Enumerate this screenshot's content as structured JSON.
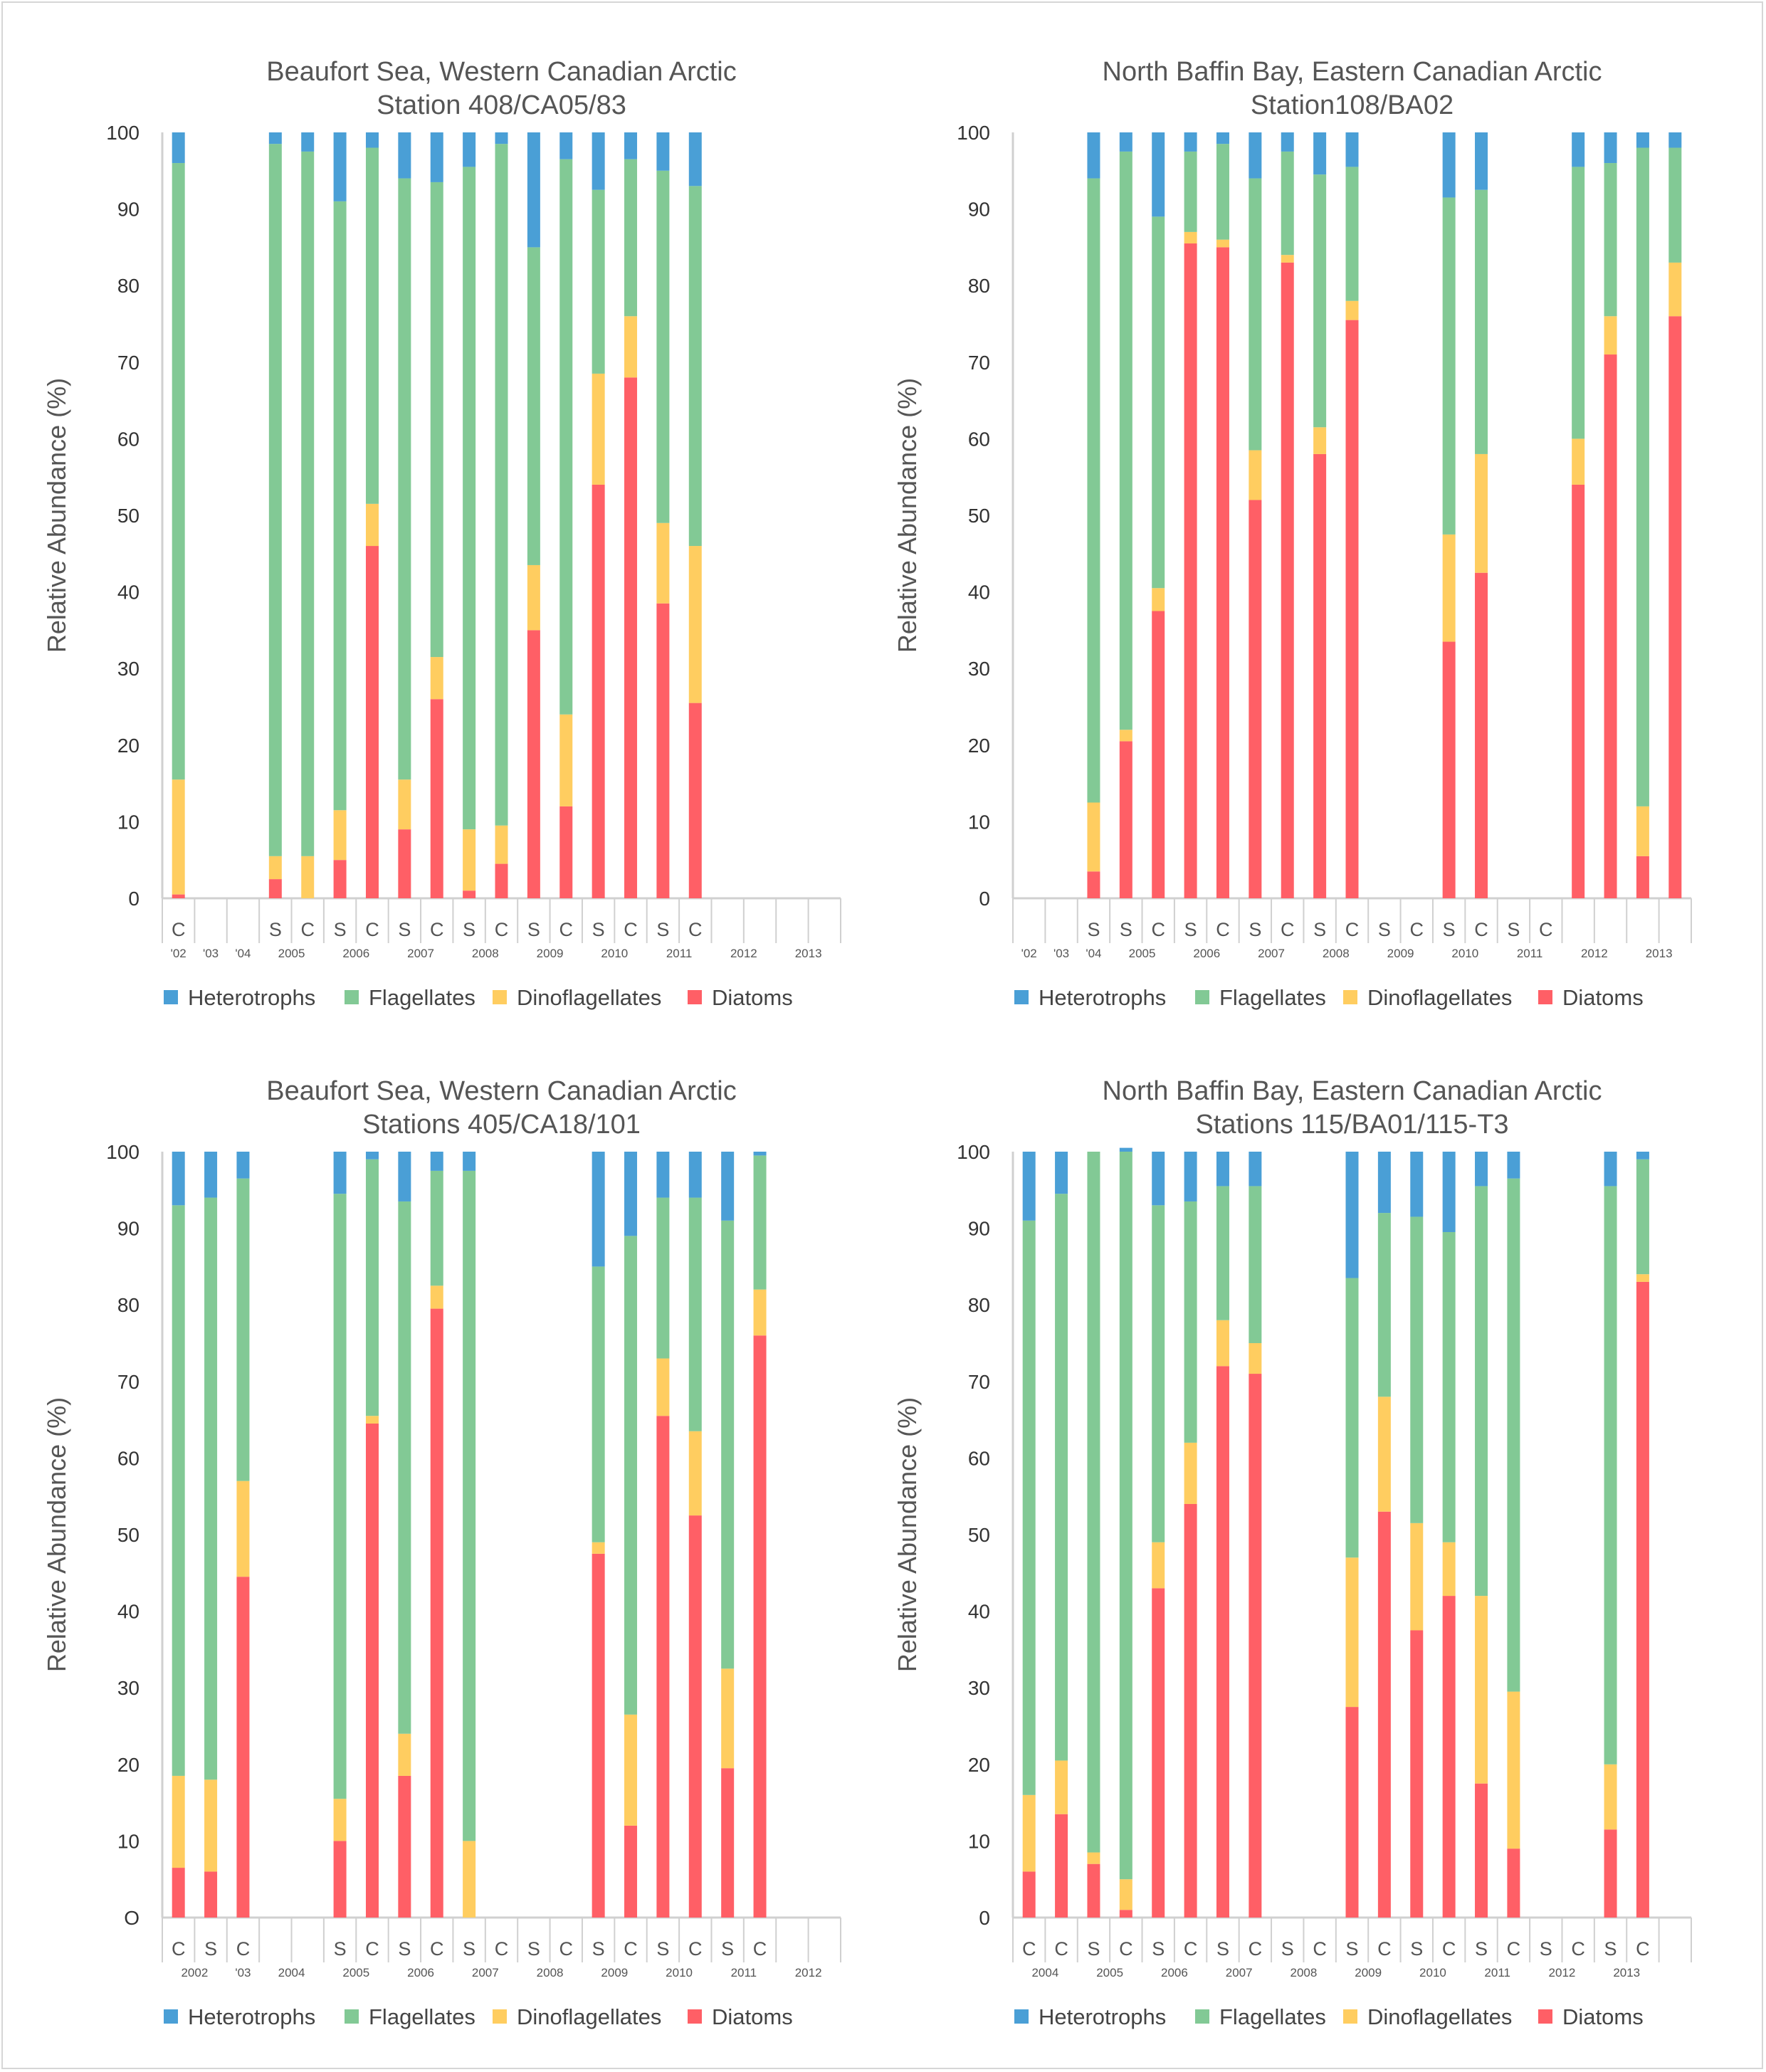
{
  "colors": {
    "Heterotrophs": "#4a9fd6",
    "Flagellates": "#82c995",
    "Dinoflagellates": "#ffcd60",
    "Diatoms": "#ff5f66",
    "axis": "#d0d0d0"
  },
  "chart_data": [
    {
      "type": "bar",
      "stacked": true,
      "title": "Beaufort Sea, Western Canadian Arctic",
      "subtitle": "Station 408/CA05/83",
      "ylabel": "Relative Abundance (%)",
      "ylim": [
        0,
        100
      ],
      "yticks": [
        "0",
        "10",
        "20",
        "30",
        "40",
        "50",
        "60",
        "70",
        "80",
        "90",
        "100"
      ],
      "legend": [
        "Heterotrophs",
        "Flagellates",
        "Dinoflagellates",
        "Diatoms"
      ],
      "legend_position": "bottom",
      "categories": [
        "C",
        "",
        "",
        "S",
        "C",
        "S",
        "C",
        "S",
        "C",
        "S",
        "C",
        "S",
        "C",
        "S",
        "C",
        "S",
        "C",
        "",
        "",
        "",
        ""
      ],
      "year_labels": [
        {
          "text": "'02",
          "slot": 0
        },
        {
          "text": "'03",
          "slot": 1
        },
        {
          "text": "'04",
          "slot": 2
        },
        {
          "text": "2005",
          "slot": 3.5
        },
        {
          "text": "2006",
          "slot": 5.5
        },
        {
          "text": "2007",
          "slot": 7.5
        },
        {
          "text": "2008",
          "slot": 9.5
        },
        {
          "text": "2009",
          "slot": 11.5
        },
        {
          "text": "2010",
          "slot": 13.5
        },
        {
          "text": "2011",
          "slot": 15.5
        },
        {
          "text": "2012",
          "slot": 17.5
        },
        {
          "text": "2013",
          "slot": 19.5
        }
      ],
      "series": [
        {
          "name": "Diatoms",
          "values": [
            0.5,
            null,
            null,
            2.5,
            0,
            5,
            46,
            9,
            26,
            1,
            4.5,
            35,
            12,
            54,
            68,
            38.5,
            25.5,
            null,
            null,
            null,
            null
          ]
        },
        {
          "name": "Dinoflagellates",
          "values": [
            15,
            null,
            null,
            3,
            5.5,
            6.5,
            5.5,
            6.5,
            5.5,
            8,
            5,
            8.5,
            12,
            14.5,
            8,
            10.5,
            20.5,
            null,
            null,
            null,
            null
          ]
        },
        {
          "name": "Flagellates",
          "values": [
            80.5,
            null,
            null,
            93,
            92,
            79.5,
            46.5,
            78.5,
            62,
            86.5,
            89,
            41.5,
            72.5,
            24,
            20.5,
            46,
            47,
            null,
            null,
            null,
            null
          ]
        },
        {
          "name": "Heterotrophs",
          "values": [
            4,
            null,
            null,
            1.5,
            2.5,
            9,
            2,
            6,
            6.5,
            4.5,
            1.5,
            15,
            3.5,
            7.5,
            3.5,
            5,
            7,
            null,
            null,
            null,
            null
          ]
        }
      ]
    },
    {
      "type": "bar",
      "stacked": true,
      "title": "North Baffin Bay, Eastern Canadian Arctic",
      "subtitle": "Station108/BA02",
      "ylabel": "Relative Abundance (%)",
      "ylim": [
        0,
        100
      ],
      "yticks": [
        "0",
        "10",
        "20",
        "30",
        "40",
        "50",
        "60",
        "70",
        "80",
        "90",
        "100"
      ],
      "legend": [
        "Heterotrophs",
        "Flagellates",
        "Dinoflagellates",
        "Diatoms"
      ],
      "legend_position": "bottom",
      "categories": [
        "",
        "",
        "S",
        "S",
        "C",
        "S",
        "C",
        "S",
        "C",
        "S",
        "C",
        "S",
        "C",
        "S",
        "C",
        "S",
        "C",
        "",
        "",
        "",
        ""
      ],
      "year_labels": [
        {
          "text": "'02",
          "slot": 0
        },
        {
          "text": "'03",
          "slot": 1
        },
        {
          "text": "'04",
          "slot": 2
        },
        {
          "text": "2005",
          "slot": 3.5
        },
        {
          "text": "2006",
          "slot": 5.5
        },
        {
          "text": "2007",
          "slot": 7.5
        },
        {
          "text": "2008",
          "slot": 9.5
        },
        {
          "text": "2009",
          "slot": 11.5
        },
        {
          "text": "2010",
          "slot": 13.5
        },
        {
          "text": "2011",
          "slot": 15.5
        },
        {
          "text": "2012",
          "slot": 17.5
        },
        {
          "text": "2013",
          "slot": 19.5
        }
      ],
      "series": [
        {
          "name": "Diatoms",
          "values": [
            null,
            null,
            3.5,
            20.5,
            37.5,
            85.5,
            85,
            52,
            83,
            58,
            75.5,
            null,
            null,
            33.5,
            42.5,
            null,
            null,
            54,
            71,
            5.5,
            76
          ]
        },
        {
          "name": "Dinoflagellates",
          "values": [
            null,
            null,
            9,
            1.5,
            3,
            1.5,
            1,
            6.5,
            1,
            3.5,
            2.5,
            null,
            null,
            14,
            15.5,
            null,
            null,
            6,
            5,
            6.5,
            7
          ]
        },
        {
          "name": "Flagellates",
          "values": [
            null,
            null,
            81.5,
            75.5,
            48.5,
            10.5,
            12.5,
            35.5,
            13.5,
            33,
            17.5,
            null,
            null,
            44,
            34.5,
            null,
            null,
            35.5,
            20,
            86,
            15
          ]
        },
        {
          "name": "Heterotrophs",
          "values": [
            null,
            null,
            6,
            2.5,
            11,
            2.5,
            1.5,
            6,
            2.5,
            5.5,
            4.5,
            null,
            null,
            8.5,
            7.5,
            null,
            null,
            4.5,
            4,
            2,
            2
          ]
        }
      ]
    },
    {
      "type": "bar",
      "stacked": true,
      "title": "Beaufort Sea, Western Canadian Arctic",
      "subtitle": "Stations 405/CA18/101",
      "ylabel": "Relative Abundance (%)",
      "ylim": [
        0,
        100
      ],
      "yticks": [
        "O",
        "10",
        "20",
        "30",
        "40",
        "50",
        "60",
        "70",
        "80",
        "90",
        "100"
      ],
      "legend": [
        "Heterotrophs",
        "Flagellates",
        "Dinoflagellates",
        "Diatoms"
      ],
      "legend_position": "bottom",
      "categories": [
        "C",
        "S",
        "C",
        "",
        "",
        "S",
        "C",
        "S",
        "C",
        "S",
        "C",
        "S",
        "C",
        "S",
        "C",
        "S",
        "C",
        "S",
        "C",
        "",
        ""
      ],
      "year_labels": [
        {
          "text": "2002",
          "slot": 0.5
        },
        {
          "text": "'03",
          "slot": 2
        },
        {
          "text": "2004",
          "slot": 3.5
        },
        {
          "text": "2005",
          "slot": 5.5
        },
        {
          "text": "2006",
          "slot": 7.5
        },
        {
          "text": "2007",
          "slot": 9.5
        },
        {
          "text": "2008",
          "slot": 11.5
        },
        {
          "text": "2009",
          "slot": 13.5
        },
        {
          "text": "2010",
          "slot": 15.5
        },
        {
          "text": "2011",
          "slot": 17.5
        },
        {
          "text": "2012",
          "slot": 19.5
        }
      ],
      "series": [
        {
          "name": "Diatoms",
          "values": [
            6.5,
            6,
            44.5,
            null,
            null,
            10,
            64.5,
            18.5,
            79.5,
            0,
            null,
            null,
            null,
            47.5,
            12,
            65.5,
            52.5,
            19.5,
            76,
            null,
            null
          ]
        },
        {
          "name": "Dinoflagellates",
          "values": [
            12,
            12,
            12.5,
            null,
            null,
            5.5,
            1,
            5.5,
            3,
            10,
            null,
            null,
            null,
            1.5,
            14.5,
            7.5,
            11,
            13,
            6,
            null,
            null
          ]
        },
        {
          "name": "Flagellates",
          "values": [
            74.5,
            76,
            39.5,
            null,
            null,
            79,
            33.5,
            69.5,
            15,
            87.5,
            null,
            null,
            null,
            36,
            62.5,
            21,
            30.5,
            58.5,
            17.5,
            null,
            null
          ]
        },
        {
          "name": "Heterotrophs",
          "values": [
            7,
            6,
            3.5,
            null,
            null,
            5.5,
            1,
            6.5,
            2.5,
            2.5,
            null,
            null,
            null,
            15,
            11,
            6,
            6,
            9,
            0.5,
            null,
            null
          ]
        }
      ]
    },
    {
      "type": "bar",
      "stacked": true,
      "title": "North Baffin Bay, Eastern Canadian Arctic",
      "subtitle": "Stations 115/BA01/115-T3",
      "ylabel": "Relative Abundance (%)",
      "ylim": [
        0,
        100
      ],
      "yticks": [
        "0",
        "10",
        "20",
        "30",
        "40",
        "50",
        "60",
        "70",
        "80",
        "90",
        "100"
      ],
      "legend": [
        "Heterotrophs",
        "Flagellates",
        "Dinoflagellates",
        "Diatoms"
      ],
      "legend_position": "bottom",
      "categories": [
        "C",
        "C",
        "S",
        "C",
        "S",
        "C",
        "S",
        "C",
        "S",
        "C",
        "S",
        "C",
        "S",
        "C",
        "S",
        "C",
        "S",
        "C",
        "S",
        "C",
        ""
      ],
      "year_labels": [
        {
          "text": "2004",
          "slot": 0.5
        },
        {
          "text": "2005",
          "slot": 2.5
        },
        {
          "text": "2006",
          "slot": 4.5
        },
        {
          "text": "2007",
          "slot": 6.5
        },
        {
          "text": "2008",
          "slot": 8.5
        },
        {
          "text": "2009",
          "slot": 10.5
        },
        {
          "text": "2010",
          "slot": 12.5
        },
        {
          "text": "2011",
          "slot": 14.5
        },
        {
          "text": "2012",
          "slot": 16.5
        },
        {
          "text": "2013",
          "slot": 18.5
        }
      ],
      "series": [
        {
          "name": "Diatoms",
          "values": [
            6,
            13.5,
            7,
            1,
            43,
            54,
            72,
            71,
            null,
            null,
            27.5,
            53,
            37.5,
            42,
            17.5,
            9,
            null,
            null,
            11.5,
            83,
            null
          ]
        },
        {
          "name": "Dinoflagellates",
          "values": [
            10,
            7,
            1.5,
            4,
            6,
            8,
            6,
            4,
            null,
            null,
            19.5,
            15,
            14,
            7,
            24.5,
            20.5,
            null,
            null,
            8.5,
            1,
            null
          ]
        },
        {
          "name": "Flagellates",
          "values": [
            75,
            74,
            91.5,
            95,
            44,
            31.5,
            17.5,
            20.5,
            null,
            null,
            36.5,
            24,
            40,
            40.5,
            53.5,
            67,
            null,
            null,
            75.5,
            15,
            null
          ]
        },
        {
          "name": "Heterotrophs",
          "values": [
            9,
            5.5,
            0,
            0.5,
            7,
            6.5,
            4.5,
            4.5,
            null,
            null,
            16.5,
            8,
            8.5,
            10.5,
            4.5,
            3.5,
            null,
            null,
            4.5,
            1,
            null
          ]
        }
      ]
    }
  ]
}
